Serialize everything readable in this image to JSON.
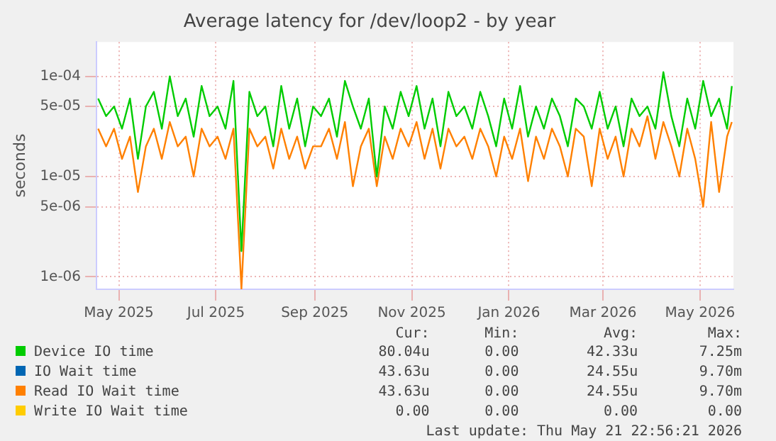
{
  "chart_data": {
    "type": "line",
    "title": "Average latency for /dev/loop2 - by year",
    "ylabel": "seconds",
    "x": [
      "2025-04-18",
      "2025-04-23",
      "2025-04-28",
      "2025-05-03",
      "2025-05-08",
      "2025-05-13",
      "2025-05-18",
      "2025-05-23",
      "2025-05-28",
      "2025-06-02",
      "2025-06-07",
      "2025-06-12",
      "2025-06-17",
      "2025-06-22",
      "2025-06-27",
      "2025-07-02",
      "2025-07-07",
      "2025-07-12",
      "2025-07-17",
      "2025-07-22",
      "2025-07-27",
      "2025-08-01",
      "2025-08-06",
      "2025-08-11",
      "2025-08-16",
      "2025-08-21",
      "2025-08-26",
      "2025-08-31",
      "2025-09-05",
      "2025-09-10",
      "2025-09-15",
      "2025-09-20",
      "2025-09-25",
      "2025-09-30",
      "2025-10-05",
      "2025-10-10",
      "2025-10-15",
      "2025-10-20",
      "2025-10-25",
      "2025-10-30",
      "2025-11-04",
      "2025-11-09",
      "2025-11-14",
      "2025-11-19",
      "2025-11-24",
      "2025-11-29",
      "2025-12-04",
      "2025-12-09",
      "2025-12-14",
      "2025-12-19",
      "2025-12-24",
      "2025-12-29",
      "2026-01-03",
      "2026-01-08",
      "2026-01-13",
      "2026-01-18",
      "2026-01-23",
      "2026-01-28",
      "2026-02-02",
      "2026-02-07",
      "2026-02-12",
      "2026-02-17",
      "2026-02-22",
      "2026-02-27",
      "2026-03-04",
      "2026-03-09",
      "2026-03-14",
      "2026-03-19",
      "2026-03-24",
      "2026-03-29",
      "2026-04-03",
      "2026-04-08",
      "2026-04-13",
      "2026-04-18",
      "2026-04-23",
      "2026-04-28",
      "2026-05-03",
      "2026-05-08",
      "2026-05-13",
      "2026-05-18",
      "2026-05-21"
    ],
    "series": [
      {
        "name": "Device IO time",
        "color": "#00cc00",
        "values": [
          6e-05,
          4e-05,
          5e-05,
          3e-05,
          6e-05,
          1.5e-05,
          5e-05,
          7e-05,
          3e-05,
          0.0001,
          4e-05,
          6e-05,
          2.5e-05,
          8e-05,
          4e-05,
          5e-05,
          3e-05,
          9e-05,
          1.8e-06,
          7e-05,
          4e-05,
          5e-05,
          2e-05,
          8e-05,
          3e-05,
          6e-05,
          2e-05,
          5e-05,
          4e-05,
          6e-05,
          2.5e-05,
          9e-05,
          5e-05,
          3e-05,
          6e-05,
          1e-05,
          5e-05,
          3e-05,
          7e-05,
          4e-05,
          8e-05,
          3e-05,
          6e-05,
          2e-05,
          7e-05,
          4e-05,
          5e-05,
          3e-05,
          7e-05,
          4e-05,
          2e-05,
          6e-05,
          3e-05,
          8e-05,
          2.5e-05,
          5e-05,
          3e-05,
          6e-05,
          4e-05,
          2e-05,
          6e-05,
          5e-05,
          3e-05,
          7e-05,
          3e-05,
          5e-05,
          2e-05,
          6e-05,
          4e-05,
          5e-05,
          3e-05,
          0.00011,
          4e-05,
          2e-05,
          6e-05,
          3e-05,
          9e-05,
          4e-05,
          6e-05,
          3e-05,
          8e-05
        ]
      },
      {
        "name": "IO Wait time",
        "color": "#0066b3",
        "values": [
          null,
          null,
          null,
          null,
          null,
          null,
          null,
          null,
          null,
          null,
          null,
          null,
          null,
          null,
          null,
          null,
          null,
          null,
          null,
          null,
          null,
          null,
          null,
          null,
          null,
          null,
          null,
          null,
          null,
          null,
          null,
          null,
          null,
          null,
          null,
          null,
          null,
          null,
          null,
          null,
          null,
          null,
          null,
          null,
          null,
          null,
          null,
          null,
          null,
          null,
          null,
          null,
          null,
          null,
          null,
          null,
          null,
          null,
          null,
          null,
          null,
          null,
          null,
          null,
          null,
          null,
          null,
          null,
          null,
          null,
          null,
          null,
          null,
          null,
          null,
          null,
          null,
          null,
          null,
          null,
          null
        ]
      },
      {
        "name": "Read IO Wait time",
        "color": "#ff8000",
        "values": [
          3e-05,
          2e-05,
          3e-05,
          1.5e-05,
          2.5e-05,
          7e-06,
          2e-05,
          3e-05,
          1.5e-05,
          3.5e-05,
          2e-05,
          2.5e-05,
          1e-05,
          3e-05,
          2e-05,
          2.5e-05,
          1.5e-05,
          3e-05,
          7.6e-07,
          3e-05,
          2e-05,
          2.5e-05,
          1.2e-05,
          3e-05,
          1.5e-05,
          2.5e-05,
          1.2e-05,
          2e-05,
          2e-05,
          3e-05,
          1.5e-05,
          3.5e-05,
          8e-06,
          2e-05,
          3e-05,
          8e-06,
          2.5e-05,
          1.5e-05,
          3e-05,
          2e-05,
          3.5e-05,
          1.5e-05,
          3e-05,
          1.2e-05,
          3e-05,
          2e-05,
          2.5e-05,
          1.5e-05,
          3e-05,
          2e-05,
          1e-05,
          2.5e-05,
          1.5e-05,
          3e-05,
          9e-06,
          2.5e-05,
          1.5e-05,
          3e-05,
          2e-05,
          1e-05,
          3e-05,
          2.5e-05,
          8e-06,
          3e-05,
          1.5e-05,
          2.5e-05,
          1e-05,
          3e-05,
          2e-05,
          4e-05,
          1.5e-05,
          3.5e-05,
          2e-05,
          1e-05,
          3e-05,
          1.5e-05,
          5e-06,
          3.5e-05,
          7e-06,
          2.5e-05,
          3.5e-05
        ]
      },
      {
        "name": "Write IO Wait time",
        "color": "#ffcc00",
        "values": [
          null,
          null,
          null,
          null,
          null,
          null,
          null,
          null,
          null,
          null,
          null,
          null,
          null,
          null,
          null,
          null,
          null,
          null,
          null,
          null,
          null,
          null,
          null,
          null,
          null,
          null,
          null,
          null,
          null,
          null,
          null,
          null,
          null,
          null,
          null,
          null,
          null,
          null,
          null,
          null,
          null,
          null,
          null,
          null,
          null,
          null,
          null,
          null,
          null,
          null,
          null,
          null,
          null,
          null,
          null,
          null,
          null,
          null,
          null,
          null,
          null,
          null,
          null,
          null,
          null,
          null,
          null,
          null,
          null,
          null,
          null,
          null,
          null,
          null,
          null,
          null,
          null,
          null,
          null,
          null,
          null
        ]
      }
    ],
    "log": "y",
    "xlim": [
      "2025-04-17",
      "2026-05-22"
    ],
    "xticks": [
      {
        "value": "2025-05-01",
        "label": "May 2025"
      },
      {
        "value": "2025-07-01",
        "label": "Jul 2025"
      },
      {
        "value": "2025-09-01",
        "label": "Sep 2025"
      },
      {
        "value": "2025-11-01",
        "label": "Nov 2025"
      },
      {
        "value": "2026-01-01",
        "label": "Jan 2026"
      },
      {
        "value": "2026-03-01",
        "label": "Mar 2026"
      },
      {
        "value": "2026-05-01",
        "label": "May 2026"
      }
    ],
    "ylim": [
      7.5e-07,
      0.00022
    ],
    "yticks": [
      {
        "value": 1e-06,
        "label": "1e-06"
      },
      {
        "value": 5e-06,
        "label": "5e-06"
      },
      {
        "value": 1e-05,
        "label": "1e-05"
      },
      {
        "value": 5e-05,
        "label": "5e-05"
      },
      {
        "value": 0.0001,
        "label": "1e-04"
      }
    ],
    "grid": true,
    "legend": "bottom",
    "marker": "none",
    "line_style": "solid",
    "annotations": [
      "Cur:",
      "Min:",
      "Avg:",
      "Max:",
      "80.04u",
      "0.00",
      "42.33u",
      "7.25m",
      "43.63u",
      "0.00",
      "24.55u",
      "9.70m",
      "43.63u",
      "0.00",
      "24.55u",
      "9.70m",
      "0.00",
      "0.00",
      "0.00",
      "0.00",
      "Last update: Thu May 21 22:56:21 2026"
    ]
  }
}
